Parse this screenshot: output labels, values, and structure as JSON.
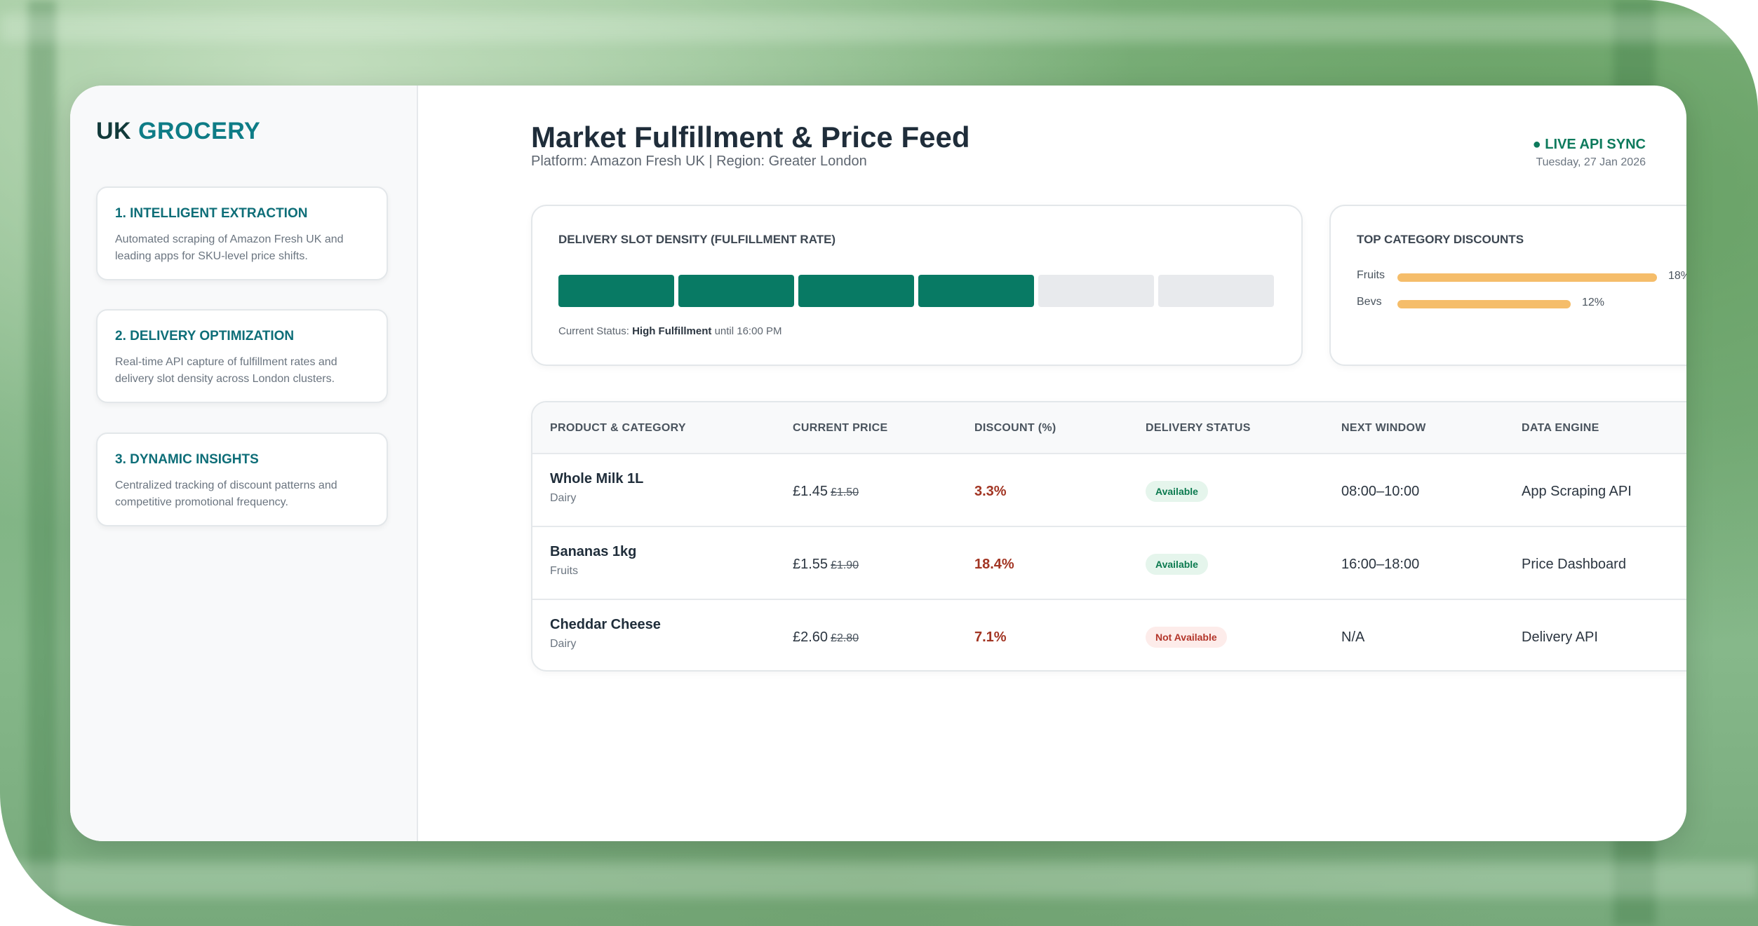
{
  "brand": {
    "prefix": "UK",
    "accent": "GROCERY"
  },
  "features": [
    {
      "title": "1. INTELLIGENT EXTRACTION",
      "desc": "Automated scraping of Amazon Fresh UK and leading apps for SKU-level price shifts."
    },
    {
      "title": "2. DELIVERY OPTIMIZATION",
      "desc": "Real-time API capture of fulfillment rates and delivery slot density across London clusters."
    },
    {
      "title": "3. DYNAMIC INSIGHTS",
      "desc": "Centralized tracking of discount patterns and competitive promotional frequency."
    }
  ],
  "header": {
    "title": "Market Fulfillment & Price Feed",
    "subtitle": "Platform: Amazon Fresh UK | Region: Greater London",
    "live": "● LIVE API SYNC",
    "date": "Tuesday, 27 Jan 2026"
  },
  "slot_panel": {
    "title": "DELIVERY SLOT DENSITY (FULFILLMENT RATE)",
    "filled": 4,
    "total": 6,
    "status_prefix": "Current Status:",
    "status_value": "High Fulfillment",
    "status_suffix": "until 16:00 PM"
  },
  "discount_panel": {
    "title": "TOP CATEGORY DISCOUNTS",
    "items": [
      {
        "label": "Fruits",
        "value": "18%",
        "pct": 18
      },
      {
        "label": "Bevs",
        "value": "12%",
        "pct": 12
      }
    ]
  },
  "table": {
    "headers": [
      "PRODUCT & CATEGORY",
      "CURRENT PRICE",
      "DISCOUNT (%)",
      "DELIVERY STATUS",
      "NEXT WINDOW",
      "DATA ENGINE"
    ],
    "rows": [
      {
        "name": "Whole Milk 1L",
        "category": "Dairy",
        "price": "£1.45",
        "old_price": "£1.50",
        "discount": "3.3%",
        "status": "Available",
        "window": "08:00–10:00",
        "engine": "App Scraping API"
      },
      {
        "name": "Bananas 1kg",
        "category": "Fruits",
        "price": "£1.55",
        "old_price": "£1.90",
        "discount": "18.4%",
        "status": "Available",
        "window": "16:00–18:00",
        "engine": "Price Dashboard"
      },
      {
        "name": "Cheddar Cheese",
        "category": "Dairy",
        "price": "£2.60",
        "old_price": "£2.80",
        "discount": "7.1%",
        "status": "Not Available",
        "window": "N/A",
        "engine": "Delivery API"
      }
    ]
  },
  "colors": {
    "brand_accent": "#0e7c86",
    "slot_on": "#087a64",
    "discount_bar": "#f5bd6a",
    "discount_text": "#a23523"
  }
}
